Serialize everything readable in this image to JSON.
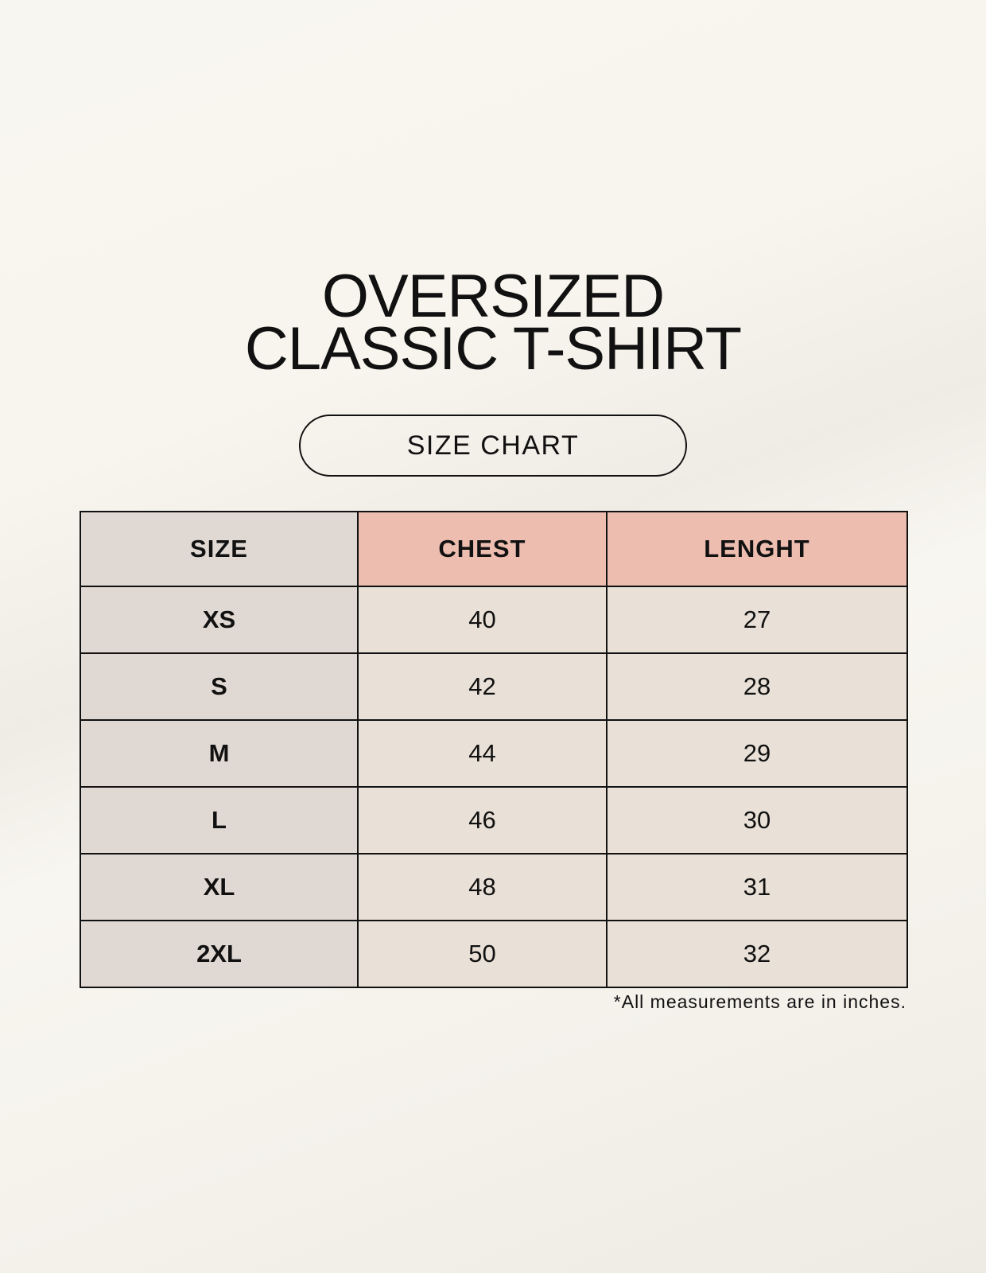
{
  "title": {
    "line1": "OVERSIZED",
    "line2": "CLASSIC T-SHIRT"
  },
  "badge": "SIZE CHART",
  "table": {
    "headers": [
      "SIZE",
      "CHEST",
      "LENGHT"
    ],
    "rows": [
      [
        "XS",
        "40",
        "27"
      ],
      [
        "S",
        "42",
        "28"
      ],
      [
        "M",
        "44",
        "29"
      ],
      [
        "L",
        "46",
        "30"
      ],
      [
        "XL",
        "48",
        "31"
      ],
      [
        "2XL",
        "50",
        "32"
      ]
    ]
  },
  "footnote": "*All measurements are in inches.",
  "colors": {
    "header_accent": "#edbdb0",
    "size_column": "#e0d8d2",
    "cells": "#e9e1d7"
  }
}
